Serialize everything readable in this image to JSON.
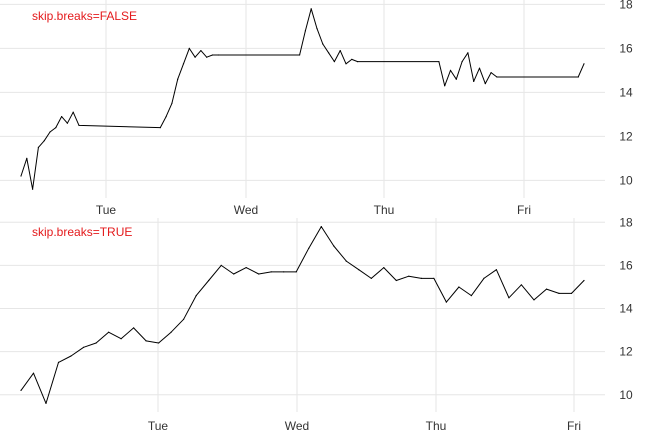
{
  "colors": {
    "annotation": "#e41a1c",
    "line": "#000000",
    "grid": "#e6e6e6",
    "background": "#ffffff"
  },
  "chart_data": [
    {
      "type": "line",
      "annotation": "skip.breaks=FALSE",
      "x_tick_labels": [
        "Tue",
        "Wed",
        "Thu",
        "Fri"
      ],
      "y_tick_labels": [
        "10",
        "12",
        "14",
        "16",
        "18"
      ],
      "ylim": [
        9.2,
        18.2
      ],
      "y_axis_position": "right",
      "grid": true,
      "series": [
        {
          "x": [
            "Mon 08:00",
            "Mon 09:00",
            "Mon 10:00",
            "Mon 11:00",
            "Mon 12:00",
            "Mon 13:00",
            "Mon 14:00",
            "Mon 15:00",
            "Mon 16:00",
            "Mon 17:00",
            "Mon 18:00",
            "Tue 08:00",
            "Tue 09:00",
            "Tue 10:00",
            "Tue 11:00",
            "Tue 12:00",
            "Tue 13:00",
            "Tue 14:00",
            "Tue 15:00",
            "Tue 16:00",
            "Tue 17:00",
            "Tue 18:00",
            "Wed 08:00",
            "Wed 09:00",
            "Wed 10:00",
            "Wed 11:00",
            "Wed 12:00",
            "Wed 13:00",
            "Wed 14:00",
            "Wed 15:00",
            "Wed 16:00",
            "Wed 17:00",
            "Wed 18:00",
            "Thu 08:00",
            "Thu 09:00",
            "Thu 10:00",
            "Thu 11:00",
            "Thu 12:00",
            "Thu 13:00",
            "Thu 14:00",
            "Thu 15:00",
            "Thu 16:00",
            "Thu 17:00",
            "Thu 18:00",
            "Fri 08:00",
            "Fri 09:00"
          ],
          "y": [
            10.2,
            11.0,
            9.6,
            11.5,
            11.8,
            12.2,
            12.4,
            12.9,
            12.6,
            13.1,
            12.5,
            12.4,
            12.9,
            13.5,
            14.6,
            15.3,
            16.0,
            15.6,
            15.9,
            15.6,
            15.7,
            15.7,
            15.7,
            16.8,
            17.8,
            16.9,
            16.2,
            15.8,
            15.4,
            15.9,
            15.3,
            15.5,
            15.4,
            15.4,
            14.3,
            15.0,
            14.6,
            15.4,
            15.8,
            14.5,
            15.1,
            14.4,
            14.9,
            14.7,
            14.7,
            15.3
          ]
        }
      ]
    },
    {
      "type": "line",
      "annotation": "skip.breaks=TRUE",
      "x_tick_labels": [
        "Tue",
        "Wed",
        "Thu",
        "Fri"
      ],
      "y_tick_labels": [
        "10",
        "12",
        "14",
        "16",
        "18"
      ],
      "ylim": [
        9.2,
        18.2
      ],
      "y_axis_position": "right",
      "grid": true,
      "series": [
        {
          "x": [
            "Mon 08:00",
            "Mon 09:00",
            "Mon 10:00",
            "Mon 11:00",
            "Mon 12:00",
            "Mon 13:00",
            "Mon 14:00",
            "Mon 15:00",
            "Mon 16:00",
            "Mon 17:00",
            "Mon 18:00",
            "Tue 08:00",
            "Tue 09:00",
            "Tue 10:00",
            "Tue 11:00",
            "Tue 12:00",
            "Tue 13:00",
            "Tue 14:00",
            "Tue 15:00",
            "Tue 16:00",
            "Tue 17:00",
            "Tue 18:00",
            "Wed 08:00",
            "Wed 09:00",
            "Wed 10:00",
            "Wed 11:00",
            "Wed 12:00",
            "Wed 13:00",
            "Wed 14:00",
            "Wed 15:00",
            "Wed 16:00",
            "Wed 17:00",
            "Wed 18:00",
            "Thu 08:00",
            "Thu 09:00",
            "Thu 10:00",
            "Thu 11:00",
            "Thu 12:00",
            "Thu 13:00",
            "Thu 14:00",
            "Thu 15:00",
            "Thu 16:00",
            "Thu 17:00",
            "Thu 18:00",
            "Fri 08:00",
            "Fri 09:00"
          ],
          "y": [
            10.2,
            11.0,
            9.6,
            11.5,
            11.8,
            12.2,
            12.4,
            12.9,
            12.6,
            13.1,
            12.5,
            12.4,
            12.9,
            13.5,
            14.6,
            15.3,
            16.0,
            15.6,
            15.9,
            15.6,
            15.7,
            15.7,
            15.7,
            16.8,
            17.8,
            16.9,
            16.2,
            15.8,
            15.4,
            15.9,
            15.3,
            15.5,
            15.4,
            15.4,
            14.3,
            15.0,
            14.6,
            15.4,
            15.8,
            14.5,
            15.1,
            14.4,
            14.9,
            14.7,
            14.7,
            15.3
          ]
        }
      ]
    }
  ]
}
